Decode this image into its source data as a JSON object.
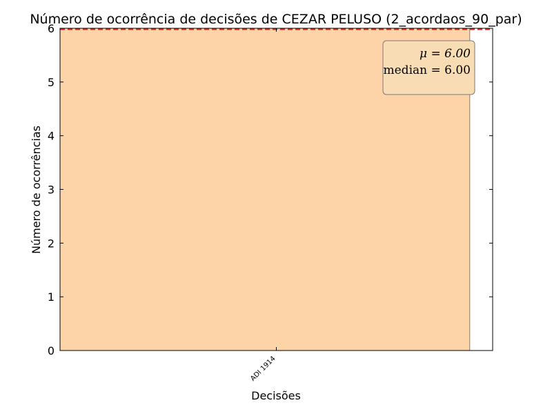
{
  "chart_data": {
    "type": "bar",
    "title": "Número de ocorrência de decisões de CEZAR PELUSO (2_acordaos_90_par)",
    "xlabel": "Decisões",
    "ylabel": "Número de ocorrências",
    "categories": [
      "ADI 1914"
    ],
    "values": [
      6
    ],
    "ylim": [
      0,
      6
    ],
    "yticks": [
      0,
      1,
      2,
      3,
      4,
      5,
      6
    ],
    "grid": false,
    "bar_color": "#fdd3a8",
    "mean_line_color": "#d62728",
    "stats_box": {
      "mean_text": "μ = 6.00",
      "median_text": "median = 6.00",
      "background": "#f8dcb4"
    }
  }
}
